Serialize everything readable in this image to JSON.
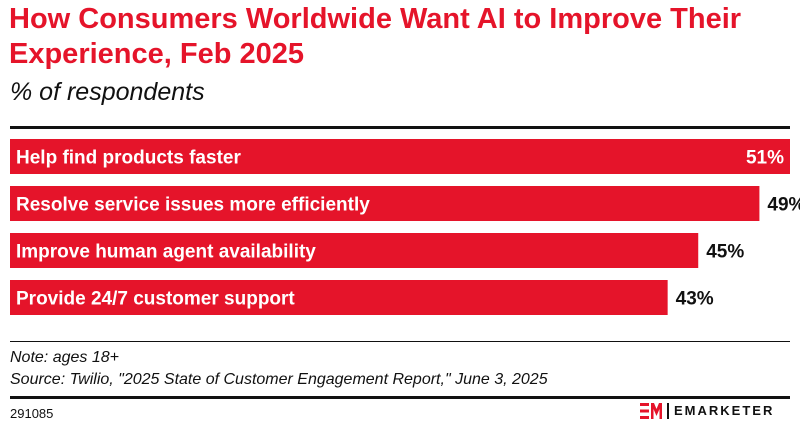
{
  "title": "How Consumers Worldwide Want AI to Improve Their Experience, Feb 2025",
  "subtitle": "% of respondents",
  "note": "Note: ages 18+",
  "source": "Source: Twilio, \"2025 State of Customer Engagement Report,\" June 3, 2025",
  "chart_id": "291085",
  "brand": "EMARKETER",
  "colors": {
    "accent": "#e5142a",
    "text": "#111111",
    "bar_text": "#ffffff"
  },
  "chart_data": {
    "type": "bar",
    "orientation": "horizontal",
    "categories": [
      "Help find products faster",
      "Resolve service issues more efficiently",
      "Improve human agent availability",
      "Provide 24/7 customer support"
    ],
    "values": [
      51,
      49,
      45,
      43
    ],
    "value_labels": [
      "51%",
      "49%",
      "45%",
      "43%"
    ],
    "title": "How Consumers Worldwide Want AI to Improve Their Experience, Feb 2025",
    "xlim": [
      0,
      51
    ],
    "grid": false,
    "legend": "none"
  }
}
